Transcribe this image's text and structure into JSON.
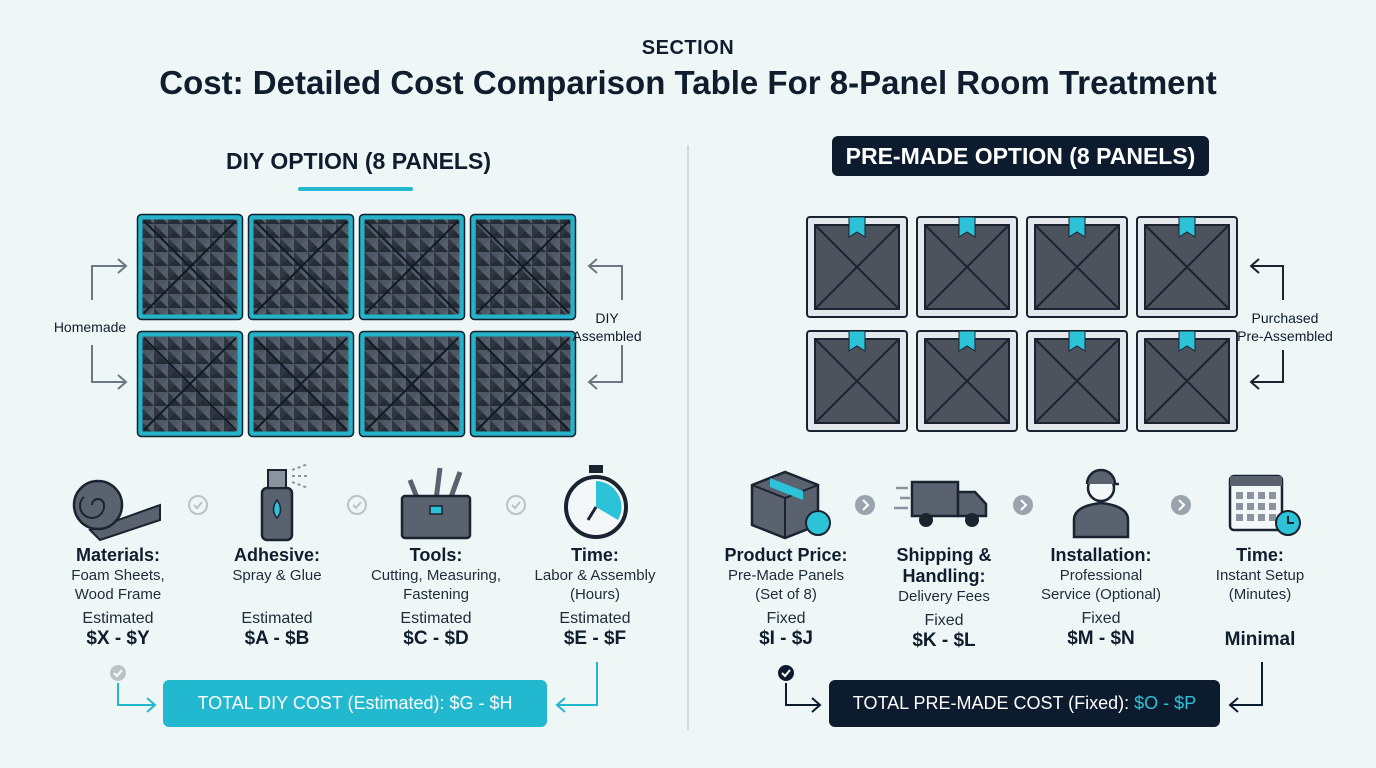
{
  "header": {
    "eyebrow": "SECTION",
    "title": "Cost: Detailed Cost Comparison Table For 8-Panel Room Treatment"
  },
  "diy": {
    "title": "DIY OPTION (8 PANELS)",
    "left_label": "Homemade",
    "right_label": [
      "DIY",
      "Assembled"
    ],
    "items": [
      {
        "title": [
          "Materials:"
        ],
        "desc": [
          "Foam Sheets,",
          "Wood Frame"
        ],
        "basis": "Estimated",
        "cost": "$X - $Y"
      },
      {
        "title": [
          "Adhesive:"
        ],
        "desc": [
          "Spray & Glue"
        ],
        "basis": "Estimated",
        "cost": "$A - $B"
      },
      {
        "title": [
          "Tools:"
        ],
        "desc": [
          "Cutting, Measuring,",
          "Fastening"
        ],
        "basis": "Estimated",
        "cost": "$C - $D"
      },
      {
        "title": [
          "Time:"
        ],
        "desc": [
          "Labor & Assembly",
          "(Hours)"
        ],
        "basis": "Estimated",
        "cost": "$E - $F"
      }
    ],
    "total": "TOTAL DIY COST (Estimated): $G - $H"
  },
  "premade": {
    "title": "PRE-MADE OPTION (8 PANELS)",
    "right_label": [
      "Purchased",
      "Pre-Assembled"
    ],
    "items": [
      {
        "title": [
          "Product Price:"
        ],
        "desc": [
          "Pre-Made Panels",
          "(Set of 8)"
        ],
        "basis": "Fixed",
        "cost": "$I - $J"
      },
      {
        "title": [
          "Shipping &",
          "Handling:"
        ],
        "desc": [
          "Delivery Fees"
        ],
        "basis": "Fixed",
        "cost": "$K - $L"
      },
      {
        "title": [
          "Installation:"
        ],
        "desc": [
          "Professional",
          "Service (Optional)"
        ],
        "basis": "Fixed",
        "cost": "$M - $N"
      },
      {
        "title": [
          "Time:"
        ],
        "desc": [
          "Instant Setup",
          "(Minutes)"
        ],
        "cost": "Minimal"
      }
    ],
    "total_label": "TOTAL PRE-MADE COST (Fixed):",
    "total_amount": "$O - $P"
  }
}
